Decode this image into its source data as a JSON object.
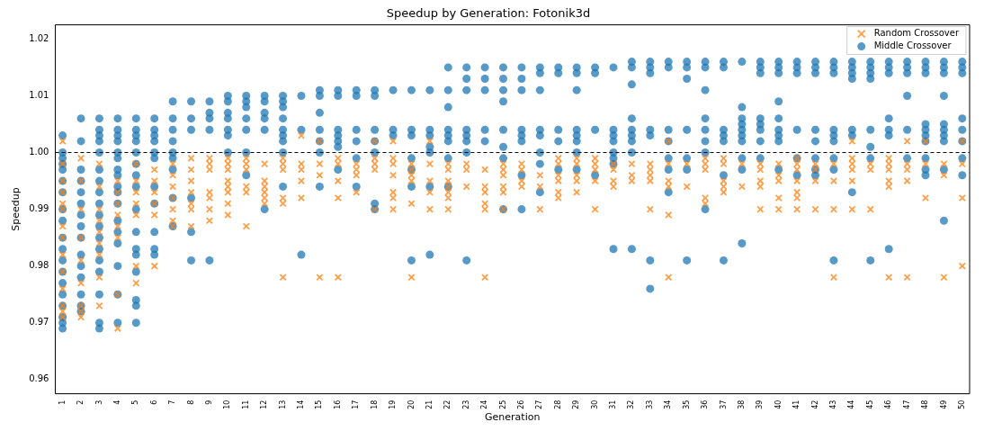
{
  "chart_data": {
    "type": "scatter",
    "title": "Speedup by Generation: Fotonik3d",
    "xlabel": "Generation",
    "ylabel": "Speedup",
    "xlim": [
      0.6,
      50.4
    ],
    "xticks": [
      1,
      2,
      3,
      4,
      5,
      6,
      7,
      8,
      9,
      10,
      11,
      12,
      13,
      14,
      15,
      16,
      17,
      18,
      19,
      20,
      21,
      22,
      23,
      24,
      25,
      26,
      27,
      28,
      29,
      30,
      31,
      32,
      33,
      34,
      35,
      36,
      37,
      38,
      39,
      40,
      41,
      42,
      43,
      44,
      45,
      46,
      47,
      48,
      49,
      50
    ],
    "ylim": [
      0.9575,
      1.0225
    ],
    "yticks": [
      0.96,
      0.97,
      0.98,
      0.99,
      {
        "value": 1,
        "label": "1.00"
      },
      1.01,
      1.02
    ],
    "grid": false,
    "legend": "top right",
    "ref_lines": [
      {
        "axis": "y",
        "value": 1,
        "color": "#000000",
        "line_style": "dashed"
      }
    ],
    "series": [
      {
        "name": "Random Crossover",
        "color": "#ff7f0e",
        "marker": "cross",
        "x": [
          1,
          1,
          1,
          1,
          1,
          1,
          1,
          1,
          1,
          1,
          1,
          1,
          1,
          1,
          2,
          2,
          2,
          2,
          2,
          2,
          2,
          2,
          2,
          3,
          3,
          3,
          3,
          3,
          3,
          3,
          3,
          3,
          4,
          4,
          4,
          4,
          4,
          4,
          4,
          4,
          5,
          5,
          5,
          5,
          5,
          5,
          5,
          6,
          6,
          6,
          6,
          6,
          6,
          7,
          7,
          7,
          7,
          7,
          7,
          7,
          8,
          8,
          8,
          8,
          8,
          8,
          8,
          9,
          9,
          9,
          9,
          9,
          9,
          9,
          10,
          10,
          10,
          10,
          10,
          10,
          10,
          10,
          11,
          11,
          11,
          11,
          11,
          11,
          12,
          12,
          12,
          12,
          12,
          12,
          13,
          13,
          13,
          13,
          13,
          13,
          14,
          14,
          14,
          14,
          14,
          15,
          15,
          15,
          15,
          16,
          16,
          16,
          16,
          16,
          17,
          17,
          17,
          17,
          18,
          18,
          18,
          18,
          18,
          19,
          19,
          19,
          19,
          19,
          19,
          19,
          20,
          20,
          20,
          20,
          20,
          20,
          21,
          21,
          21,
          21,
          21,
          22,
          22,
          22,
          22,
          22,
          22,
          22,
          23,
          23,
          23,
          24,
          24,
          24,
          24,
          24,
          24,
          25,
          25,
          25,
          25,
          25,
          25,
          26,
          26,
          26,
          26,
          27,
          27,
          27,
          28,
          28,
          28,
          28,
          28,
          28,
          29,
          29,
          29,
          29,
          29,
          30,
          30,
          30,
          30,
          30,
          31,
          31,
          31,
          31,
          32,
          32,
          32,
          33,
          33,
          33,
          33,
          33,
          34,
          34,
          34,
          34,
          34,
          34,
          35,
          35,
          36,
          36,
          36,
          36,
          36,
          37,
          37,
          37,
          37,
          37,
          38,
          38,
          39,
          39,
          39,
          39,
          39,
          40,
          40,
          40,
          40,
          40,
          41,
          41,
          41,
          41,
          41,
          41,
          41,
          42,
          42,
          42,
          42,
          43,
          43,
          43,
          43,
          44,
          44,
          44,
          44,
          44,
          44,
          45,
          45,
          45,
          46,
          46,
          46,
          46,
          46,
          46,
          47,
          47,
          47,
          47,
          47,
          48,
          48,
          48,
          49,
          49,
          49,
          50,
          50,
          50,
          50
        ],
        "values": [
          1.002,
          0.998,
          0.995,
          0.993,
          0.991,
          0.99,
          0.987,
          0.985,
          0.982,
          0.979,
          0.976,
          0.973,
          0.972,
          0.971,
          0.999,
          0.995,
          0.99,
          0.985,
          0.981,
          0.977,
          0.973,
          0.972,
          0.971,
          0.998,
          0.994,
          0.99,
          0.988,
          0.986,
          0.984,
          0.982,
          0.978,
          0.973,
          0.995,
          0.993,
          0.991,
          0.989,
          0.987,
          0.985,
          0.975,
          0.969,
          0.998,
          0.995,
          0.993,
          0.991,
          0.989,
          0.98,
          0.977,
          0.997,
          0.995,
          0.993,
          0.991,
          0.989,
          0.98,
          0.998,
          0.996,
          0.994,
          0.992,
          0.99,
          0.988,
          0.987,
          0.999,
          0.997,
          0.995,
          0.993,
          0.991,
          0.99,
          0.987,
          0.999,
          0.998,
          0.997,
          0.993,
          0.992,
          0.99,
          0.988,
          0.999,
          0.998,
          0.997,
          0.995,
          0.994,
          0.993,
          0.991,
          0.989,
          0.999,
          0.998,
          0.997,
          0.994,
          0.993,
          0.987,
          0.998,
          0.995,
          0.994,
          0.993,
          0.992,
          0.991,
          0.999,
          0.998,
          0.997,
          0.992,
          0.991,
          0.978,
          1.003,
          0.998,
          0.997,
          0.995,
          0.992,
          1.002,
          0.998,
          0.996,
          0.978,
          0.999,
          0.998,
          0.995,
          0.992,
          0.978,
          0.998,
          0.997,
          0.996,
          0.993,
          1.002,
          0.999,
          0.998,
          0.997,
          0.99,
          1.002,
          0.999,
          0.998,
          0.996,
          0.993,
          0.992,
          0.99,
          0.998,
          0.997,
          0.996,
          0.995,
          0.991,
          0.978,
          1.002,
          0.998,
          0.995,
          0.993,
          0.99,
          0.998,
          0.997,
          0.995,
          0.994,
          0.993,
          0.992,
          0.99,
          0.998,
          0.997,
          0.994,
          0.997,
          0.994,
          0.993,
          0.991,
          0.99,
          0.978,
          0.998,
          0.997,
          0.996,
          0.994,
          0.993,
          0.99,
          0.998,
          0.997,
          0.995,
          0.994,
          0.996,
          0.994,
          0.99,
          0.999,
          0.998,
          0.996,
          0.995,
          0.993,
          0.992,
          0.999,
          0.998,
          0.996,
          0.995,
          0.993,
          0.999,
          0.998,
          0.997,
          0.995,
          0.99,
          0.998,
          0.997,
          0.995,
          0.994,
          0.998,
          0.996,
          0.995,
          0.998,
          0.997,
          0.996,
          0.995,
          0.99,
          1.002,
          0.998,
          0.995,
          0.994,
          0.989,
          0.978,
          0.998,
          0.994,
          0.999,
          0.998,
          0.997,
          0.992,
          0.991,
          0.999,
          0.998,
          0.995,
          0.994,
          0.993,
          0.998,
          0.994,
          0.998,
          0.997,
          0.995,
          0.994,
          0.99,
          0.998,
          0.996,
          0.995,
          0.992,
          0.99,
          0.999,
          0.998,
          0.997,
          0.995,
          0.993,
          0.992,
          0.99,
          0.998,
          0.997,
          0.995,
          0.99,
          0.998,
          0.995,
          0.99,
          0.978,
          1.002,
          0.999,
          0.998,
          0.997,
          0.995,
          0.99,
          0.998,
          0.997,
          0.99,
          0.999,
          0.998,
          0.997,
          0.995,
          0.994,
          0.978,
          1.002,
          0.998,
          0.997,
          0.995,
          0.978,
          1.002,
          0.998,
          0.992,
          0.998,
          0.996,
          0.978,
          1.002,
          0.998,
          0.992,
          0.98
        ]
      },
      {
        "name": "Middle Crossover",
        "color": "#1f77b4",
        "marker": "circle",
        "x": [
          1,
          1,
          1,
          1,
          1,
          1,
          1,
          1,
          1,
          1,
          1,
          1,
          1,
          1,
          1,
          1,
          1,
          1,
          1,
          2,
          2,
          2,
          2,
          2,
          2,
          2,
          2,
          2,
          2,
          2,
          2,
          2,
          2,
          2,
          3,
          3,
          3,
          3,
          3,
          3,
          3,
          3,
          3,
          3,
          3,
          3,
          3,
          3,
          3,
          3,
          3,
          3,
          4,
          4,
          4,
          4,
          4,
          4,
          4,
          4,
          4,
          4,
          4,
          4,
          4,
          4,
          4,
          4,
          4,
          5,
          5,
          5,
          5,
          5,
          5,
          5,
          5,
          5,
          5,
          5,
          5,
          5,
          5,
          5,
          5,
          6,
          6,
          6,
          6,
          6,
          6,
          6,
          6,
          6,
          6,
          6,
          7,
          7,
          7,
          7,
          7,
          7,
          7,
          7,
          7,
          8,
          8,
          8,
          8,
          8,
          8,
          9,
          9,
          9,
          9,
          9,
          10,
          10,
          10,
          10,
          10,
          10,
          10,
          11,
          11,
          11,
          11,
          11,
          11,
          11,
          12,
          12,
          12,
          12,
          12,
          12,
          13,
          13,
          13,
          13,
          13,
          13,
          13,
          13,
          13,
          14,
          14,
          14,
          15,
          15,
          15,
          15,
          15,
          15,
          15,
          16,
          16,
          16,
          16,
          16,
          16,
          16,
          17,
          17,
          17,
          17,
          17,
          17,
          18,
          18,
          18,
          18,
          18,
          18,
          18,
          19,
          19,
          19,
          20,
          20,
          20,
          20,
          20,
          20,
          20,
          21,
          21,
          21,
          21,
          21,
          21,
          21,
          22,
          22,
          22,
          22,
          22,
          22,
          22,
          22,
          23,
          23,
          23,
          23,
          23,
          23,
          23,
          23,
          24,
          24,
          24,
          24,
          24,
          25,
          25,
          25,
          25,
          25,
          25,
          25,
          25,
          26,
          26,
          26,
          26,
          26,
          26,
          26,
          26,
          27,
          27,
          27,
          27,
          27,
          27,
          27,
          27,
          28,
          28,
          28,
          28,
          28,
          29,
          29,
          29,
          29,
          29,
          29,
          29,
          29,
          30,
          30,
          30,
          30,
          31,
          31,
          31,
          31,
          31,
          31,
          31,
          31,
          32,
          32,
          32,
          32,
          32,
          32,
          32,
          32,
          32,
          33,
          33,
          33,
          33,
          33,
          33,
          33,
          34,
          34,
          34,
          34,
          34,
          34,
          34,
          35,
          35,
          35,
          35,
          35,
          35,
          35,
          36,
          36,
          36,
          36,
          36,
          36,
          36,
          36,
          37,
          37,
          37,
          37,
          37,
          37,
          37,
          38,
          38,
          38,
          38,
          38,
          38,
          38,
          38,
          38,
          38,
          39,
          39,
          39,
          39,
          39,
          39,
          39,
          39,
          40,
          40,
          40,
          40,
          40,
          40,
          40,
          40,
          40,
          41,
          41,
          41,
          41,
          41,
          41,
          42,
          42,
          42,
          42,
          42,
          42,
          42,
          42,
          43,
          43,
          43,
          43,
          43,
          43,
          43,
          43,
          43,
          44,
          44,
          44,
          44,
          44,
          44,
          44,
          45,
          45,
          45,
          45,
          45,
          45,
          45,
          45,
          46,
          46,
          46,
          46,
          46,
          46,
          46,
          47,
          47,
          47,
          47,
          47,
          47,
          48,
          48,
          48,
          48,
          48,
          48,
          48,
          48,
          48,
          48,
          49,
          49,
          49,
          49,
          49,
          49,
          49,
          49,
          49,
          49,
          50,
          50,
          50,
          50,
          50,
          50,
          50,
          50
        ],
        "values": [
          1.003,
          1.0,
          0.999,
          0.998,
          0.997,
          0.995,
          0.993,
          0.99,
          0.988,
          0.985,
          0.983,
          0.981,
          0.979,
          0.977,
          0.975,
          0.973,
          0.971,
          0.97,
          0.969,
          1.006,
          1.002,
          0.997,
          0.995,
          0.993,
          0.991,
          0.989,
          0.987,
          0.985,
          0.982,
          0.98,
          0.978,
          0.975,
          0.973,
          0.972,
          1.006,
          1.004,
          1.003,
          1.002,
          1.0,
          0.997,
          0.995,
          0.993,
          0.991,
          0.989,
          0.987,
          0.985,
          0.983,
          0.981,
          0.979,
          0.975,
          0.97,
          0.969,
          1.006,
          1.004,
          1.003,
          1.002,
          1.0,
          0.999,
          0.997,
          0.996,
          0.994,
          0.993,
          0.991,
          0.988,
          0.986,
          0.984,
          0.98,
          0.975,
          0.97,
          1.006,
          1.004,
          1.003,
          1.002,
          1.0,
          0.998,
          0.996,
          0.994,
          0.99,
          0.986,
          0.983,
          0.982,
          0.979,
          0.974,
          0.973,
          0.97,
          1.006,
          1.004,
          1.003,
          1.002,
          1.0,
          0.999,
          0.994,
          0.991,
          0.986,
          0.983,
          0.982,
          1.009,
          1.006,
          1.004,
          1.002,
          1.0,
          0.999,
          0.997,
          0.992,
          0.987,
          1.009,
          1.006,
          1.004,
          0.992,
          0.986,
          0.981,
          1.009,
          1.007,
          1.006,
          1.004,
          0.981,
          1.01,
          1.009,
          1.007,
          1.006,
          1.004,
          1.003,
          1.0,
          1.01,
          1.009,
          1.008,
          1.006,
          1.004,
          1.0,
          0.996,
          1.01,
          1.009,
          1.007,
          1.006,
          1.004,
          0.99,
          1.01,
          1.009,
          1.008,
          1.006,
          1.004,
          1.003,
          1.002,
          1.0,
          0.994,
          1.01,
          1.004,
          0.982,
          1.011,
          1.01,
          1.007,
          1.004,
          1.002,
          1.0,
          0.994,
          1.011,
          1.01,
          1.004,
          1.003,
          1.002,
          1.001,
          0.997,
          1.011,
          1.01,
          1.004,
          1.002,
          0.999,
          0.994,
          1.011,
          1.01,
          1.004,
          1.002,
          1.0,
          0.991,
          0.99,
          1.011,
          1.004,
          1.003,
          1.011,
          1.004,
          1.003,
          0.999,
          0.997,
          0.994,
          0.981,
          1.011,
          1.004,
          1.003,
          1.001,
          1.0,
          0.994,
          0.982,
          1.015,
          1.011,
          1.008,
          1.004,
          1.003,
          1.002,
          0.999,
          0.994,
          1.015,
          1.013,
          1.011,
          1.004,
          1.003,
          1.002,
          1.0,
          0.981,
          1.015,
          1.013,
          1.011,
          1.004,
          1.002,
          1.015,
          1.013,
          1.011,
          1.009,
          1.004,
          1.001,
          0.999,
          0.99,
          1.015,
          1.013,
          1.011,
          1.004,
          1.003,
          1.002,
          0.996,
          0.99,
          1.015,
          1.014,
          1.011,
          1.004,
          1.003,
          1.0,
          0.998,
          0.993,
          1.015,
          1.014,
          1.004,
          1.002,
          0.997,
          1.015,
          1.014,
          1.011,
          1.004,
          1.003,
          1.002,
          1.0,
          0.997,
          1.015,
          1.014,
          1.004,
          0.996,
          1.015,
          1.004,
          1.003,
          1.002,
          1.0,
          0.999,
          0.998,
          0.983,
          1.016,
          1.015,
          1.012,
          1.006,
          1.004,
          1.003,
          1.002,
          1.0,
          0.983,
          1.016,
          1.015,
          1.014,
          1.004,
          1.003,
          0.981,
          0.976,
          1.016,
          1.015,
          1.004,
          1.002,
          0.999,
          0.997,
          0.993,
          1.016,
          1.015,
          1.013,
          1.004,
          0.999,
          0.997,
          0.981,
          1.016,
          1.015,
          1.011,
          1.006,
          1.004,
          1.002,
          1.0,
          0.99,
          1.016,
          1.015,
          1.004,
          1.003,
          1.002,
          0.996,
          0.981,
          1.016,
          1.008,
          1.006,
          1.005,
          1.004,
          1.003,
          1.002,
          0.999,
          0.997,
          0.984,
          1.016,
          1.015,
          1.014,
          1.006,
          1.005,
          1.004,
          1.002,
          0.999,
          1.016,
          1.015,
          1.014,
          1.009,
          1.006,
          1.004,
          1.003,
          1.002,
          0.997,
          1.016,
          1.015,
          1.014,
          1.004,
          0.999,
          0.996,
          1.016,
          1.015,
          1.014,
          1.004,
          1.002,
          0.999,
          0.997,
          0.996,
          1.016,
          1.015,
          1.014,
          1.004,
          1.003,
          1.002,
          0.999,
          0.997,
          0.981,
          1.016,
          1.015,
          1.014,
          1.013,
          1.004,
          1.003,
          0.993,
          1.016,
          1.015,
          1.014,
          1.013,
          1.004,
          1.001,
          0.999,
          0.981,
          1.016,
          1.015,
          1.014,
          1.006,
          1.004,
          1.003,
          0.983,
          1.016,
          1.015,
          1.014,
          1.01,
          1.004,
          0.999,
          1.016,
          1.015,
          1.014,
          1.005,
          1.004,
          1.003,
          1.002,
          0.999,
          0.997,
          0.996,
          1.016,
          1.015,
          1.014,
          1.01,
          1.005,
          1.004,
          1.003,
          1.002,
          0.997,
          0.988,
          1.016,
          1.015,
          1.014,
          1.006,
          1.004,
          1.002,
          0.999,
          0.996
        ]
      }
    ]
  }
}
